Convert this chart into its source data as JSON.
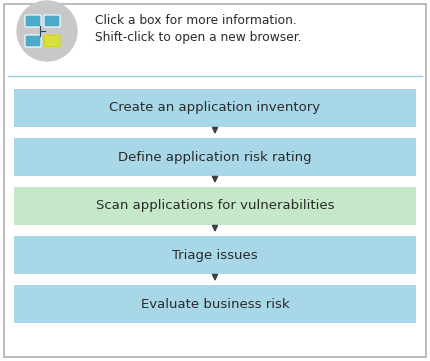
{
  "background_color": "#ffffff",
  "outer_border_color": "#b0b0b0",
  "boxes": [
    {
      "label": "Create an application inventory",
      "color": "#a8d8e8"
    },
    {
      "label": "Define application risk rating",
      "color": "#a8d8e8"
    },
    {
      "label": "Scan applications for vulnerabilities",
      "color": "#c5e8c8"
    },
    {
      "label": "Triage issues",
      "color": "#a8d8e8"
    },
    {
      "label": "Evaluate business risk",
      "color": "#a8d8e8"
    }
  ],
  "arrow_color": "#404040",
  "header_text_line1": "Click a box for more information.",
  "header_text_line2": "Shift-click to open a new browser.",
  "text_color": "#2a2a2a",
  "font_size": 9.5,
  "header_font_size": 8.8,
  "separator_color": "#99ccdd",
  "icon_circle_color": "#c8c8c8",
  "icon_box_color": "#4aaac8",
  "icon_highlight_color": "#d8e040"
}
